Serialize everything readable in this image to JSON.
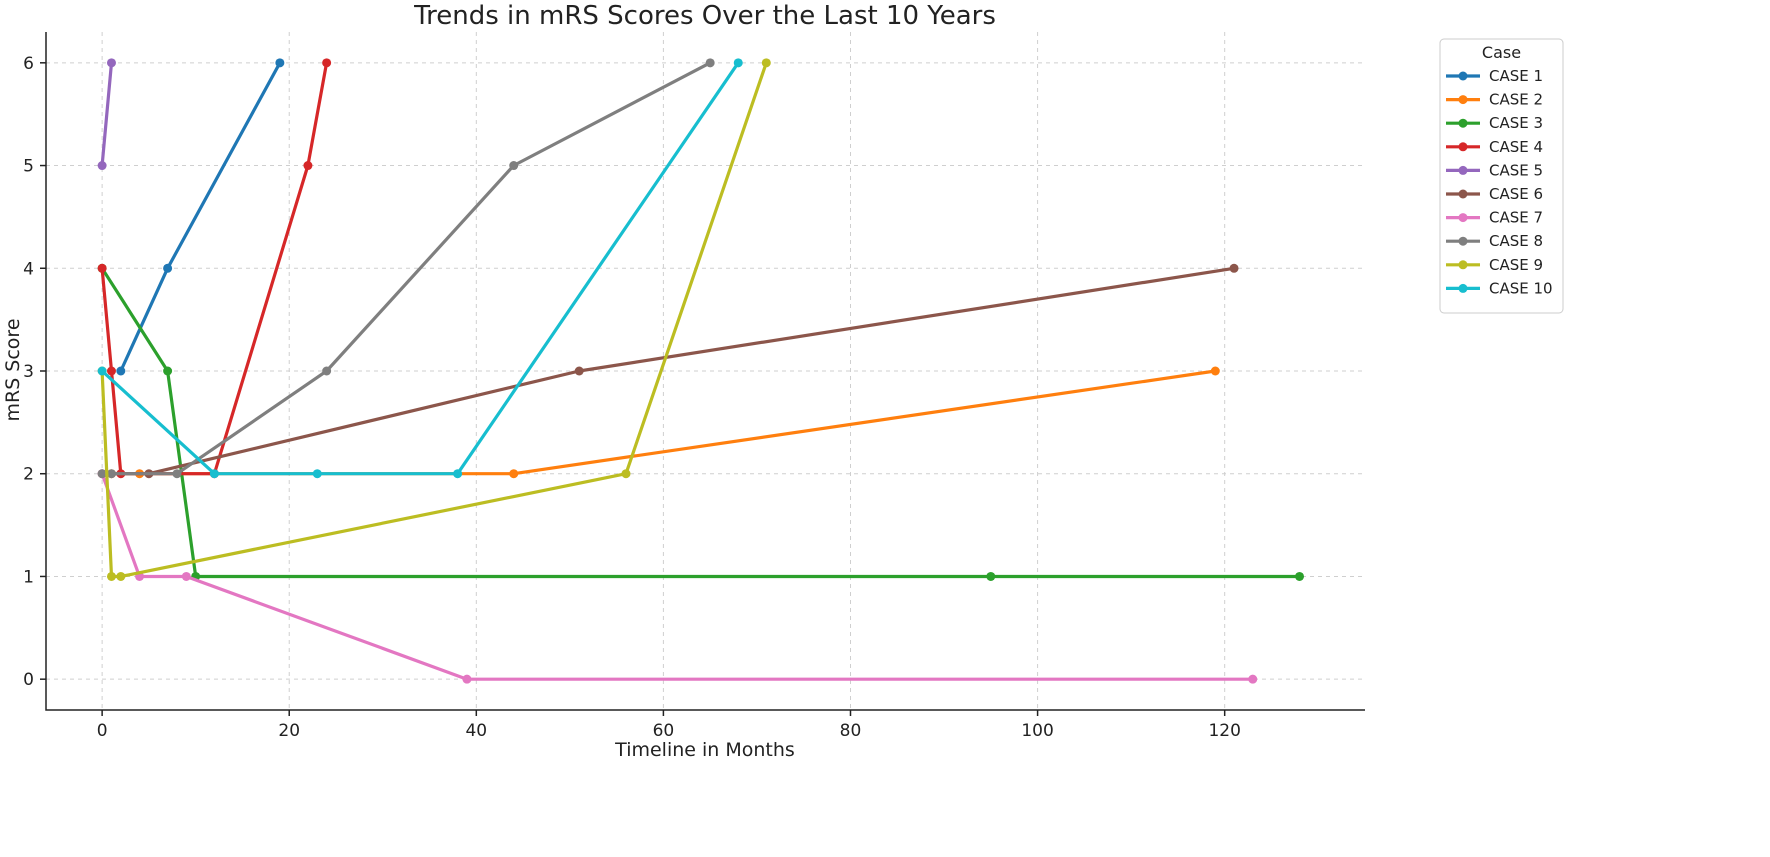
{
  "chart_data": {
    "type": "line",
    "title": "Trends in mRS Scores Over the Last 10 Years",
    "xlabel": "Timeline in Months",
    "ylabel": "mRS Score",
    "xlim": [
      -6,
      135
    ],
    "ylim": [
      -0.3,
      6.3
    ],
    "xticks": [
      0,
      20,
      40,
      60,
      80,
      100,
      120
    ],
    "yticks": [
      0,
      1,
      2,
      3,
      4,
      5,
      6
    ],
    "grid": true,
    "legend": {
      "title": "Case",
      "placement": "outside-top-right"
    },
    "series": [
      {
        "name": "CASE 1",
        "color": "#1f77b4",
        "x": [
          2,
          7,
          19
        ],
        "y": [
          3,
          4,
          6
        ]
      },
      {
        "name": "CASE 2",
        "color": "#ff7f0e",
        "x": [
          1,
          4,
          44,
          119
        ],
        "y": [
          2,
          2,
          2,
          3
        ]
      },
      {
        "name": "CASE 3",
        "color": "#2ca02c",
        "x": [
          0,
          7,
          10,
          95,
          128
        ],
        "y": [
          4,
          3,
          1,
          1,
          1
        ]
      },
      {
        "name": "CASE 4",
        "color": "#d62728",
        "x": [
          0,
          1,
          2,
          12,
          22,
          24
        ],
        "y": [
          4,
          3,
          2,
          2,
          5,
          6
        ]
      },
      {
        "name": "CASE 5",
        "color": "#9467bd",
        "x": [
          0,
          1
        ],
        "y": [
          5,
          6
        ]
      },
      {
        "name": "CASE 6",
        "color": "#8c564b",
        "x": [
          0,
          5,
          51,
          121
        ],
        "y": [
          2,
          2,
          3,
          4
        ]
      },
      {
        "name": "CASE 7",
        "color": "#e377c2",
        "x": [
          0,
          4,
          9,
          39,
          123
        ],
        "y": [
          2,
          1,
          1,
          0,
          0
        ]
      },
      {
        "name": "CASE 8",
        "color": "#7f7f7f",
        "x": [
          0,
          1,
          8,
          24,
          44,
          65
        ],
        "y": [
          2,
          2,
          2,
          3,
          5,
          6
        ]
      },
      {
        "name": "CASE 9",
        "color": "#bcbd22",
        "x": [
          0,
          1,
          2,
          56,
          71
        ],
        "y": [
          3,
          1,
          1,
          2,
          6
        ]
      },
      {
        "name": "CASE 10",
        "color": "#17becf",
        "x": [
          0,
          12,
          23,
          38,
          68
        ],
        "y": [
          3,
          2,
          2,
          2,
          6
        ]
      }
    ]
  }
}
